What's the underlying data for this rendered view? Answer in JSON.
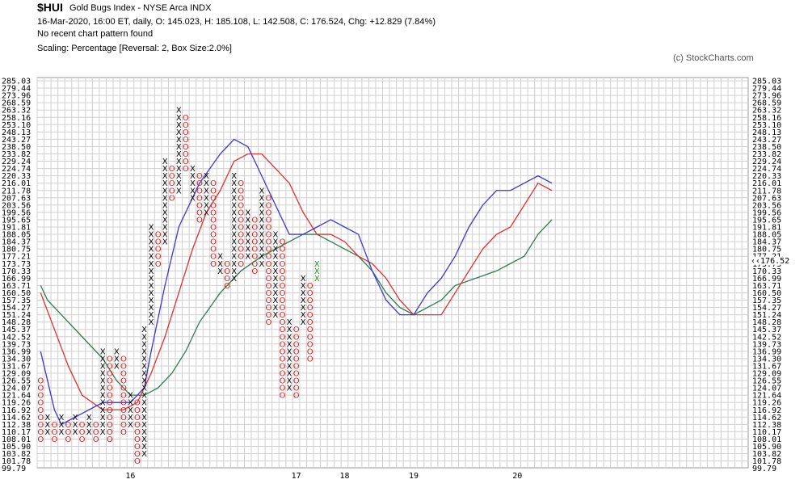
{
  "header": {
    "symbol": "$HUI",
    "name": "Gold Bugs Index - NYSE Arca  INDX",
    "line2": "16-Mar-2020, 16:00 ET, daily, O: 145.023, H: 185.108, L: 142.508, C: 176.524, Chg: +12.829 (7.84%)",
    "line3": "No recent chart pattern found",
    "line4": "Scaling: Percentage [Reversal: 2, Box Size:2.0%]",
    "credit": "(c) StockCharts.com"
  },
  "chart_data": {
    "type": "point-and-figure",
    "title": "$HUI",
    "scale_labels": [
      "285.03",
      "279.44",
      "273.96",
      "268.59",
      "263.32",
      "258.16",
      "253.10",
      "248.13",
      "243.27",
      "238.50",
      "233.82",
      "229.24",
      "224.74",
      "220.33",
      "216.01",
      "211.78",
      "207.63",
      "203.56",
      "199.56",
      "195.65",
      "191.81",
      "188.05",
      "184.37",
      "180.75",
      "177.21",
      "173.73",
      "170.33",
      "166.99",
      "163.71",
      "160.50",
      "157.35",
      "154.27",
      "151.24",
      "148.28",
      "145.37",
      "142.52",
      "139.73",
      "136.99",
      "134.30",
      "131.67",
      "129.09",
      "126.55",
      "124.07",
      "121.64",
      "119.26",
      "116.92",
      "114.62",
      "112.38",
      "110.17",
      "108.01",
      "105.90",
      "103.82",
      "101.78",
      "99.79"
    ],
    "x_labels": [
      {
        "label": "16",
        "col": 13
      },
      {
        "label": "17",
        "col": 37
      },
      {
        "label": "18",
        "col": 44
      },
      {
        "label": "19",
        "col": 54
      },
      {
        "label": "20",
        "col": 69
      }
    ],
    "last_price_label": "176.52",
    "left_price_label": "173.73",
    "columns": [
      {
        "t": "O",
        "top": 41,
        "bot": 49
      },
      {
        "t": "X",
        "top": 46,
        "bot": 48
      },
      {
        "t": "O",
        "top": 47,
        "bot": 49
      },
      {
        "t": "X",
        "top": 46,
        "bot": 48
      },
      {
        "t": "O",
        "top": 47,
        "bot": 49
      },
      {
        "t": "X",
        "top": 46,
        "bot": 48
      },
      {
        "t": "O",
        "top": 47,
        "bot": 49
      },
      {
        "t": "X",
        "top": 46,
        "bot": 48
      },
      {
        "t": "O",
        "top": 47,
        "bot": 49
      },
      {
        "t": "X",
        "top": 37,
        "bot": 48
      },
      {
        "t": "O",
        "top": 38,
        "bot": 49
      },
      {
        "t": "X",
        "top": 37,
        "bot": 39
      },
      {
        "t": "O",
        "top": 38,
        "bot": 48
      },
      {
        "t": "X",
        "top": 43,
        "bot": 47
      },
      {
        "t": "O",
        "top": 44,
        "bot": 52
      },
      {
        "t": "X",
        "top": 34,
        "bot": 51
      },
      {
        "t": "X",
        "top": 20,
        "bot": 33
      },
      {
        "t": "O",
        "top": 21,
        "bot": 25
      },
      {
        "t": "X",
        "top": 11,
        "bot": 22
      },
      {
        "t": "O",
        "top": 12,
        "bot": 16
      },
      {
        "t": "X",
        "top": 4,
        "bot": 15
      },
      {
        "t": "O",
        "top": 5,
        "bot": 12
      },
      {
        "t": "X",
        "top": 12,
        "bot": 16
      },
      {
        "t": "O",
        "top": 13,
        "bot": 19
      },
      {
        "t": "X",
        "top": 13,
        "bot": 18
      },
      {
        "t": "O",
        "top": 14,
        "bot": 25
      },
      {
        "t": "X",
        "top": 24,
        "bot": 26
      },
      {
        "t": "O",
        "top": 25,
        "bot": 28
      },
      {
        "t": "X",
        "top": 13,
        "bot": 27
      },
      {
        "t": "O",
        "top": 14,
        "bot": 25
      },
      {
        "t": "X",
        "top": 18,
        "bot": 24
      },
      {
        "t": "O",
        "top": 19,
        "bot": 26
      },
      {
        "t": "X",
        "top": 15,
        "bot": 25
      },
      {
        "t": "O",
        "top": 16,
        "bot": 33
      },
      {
        "t": "X",
        "top": 21,
        "bot": 32
      },
      {
        "t": "O",
        "top": 22,
        "bot": 43
      },
      {
        "t": "X",
        "top": 33,
        "bot": 42
      },
      {
        "t": "O",
        "top": 34,
        "bot": 43
      },
      {
        "t": "X",
        "top": 27,
        "bot": 33
      },
      {
        "t": "O",
        "top": 28,
        "bot": 38
      }
    ]
  }
}
